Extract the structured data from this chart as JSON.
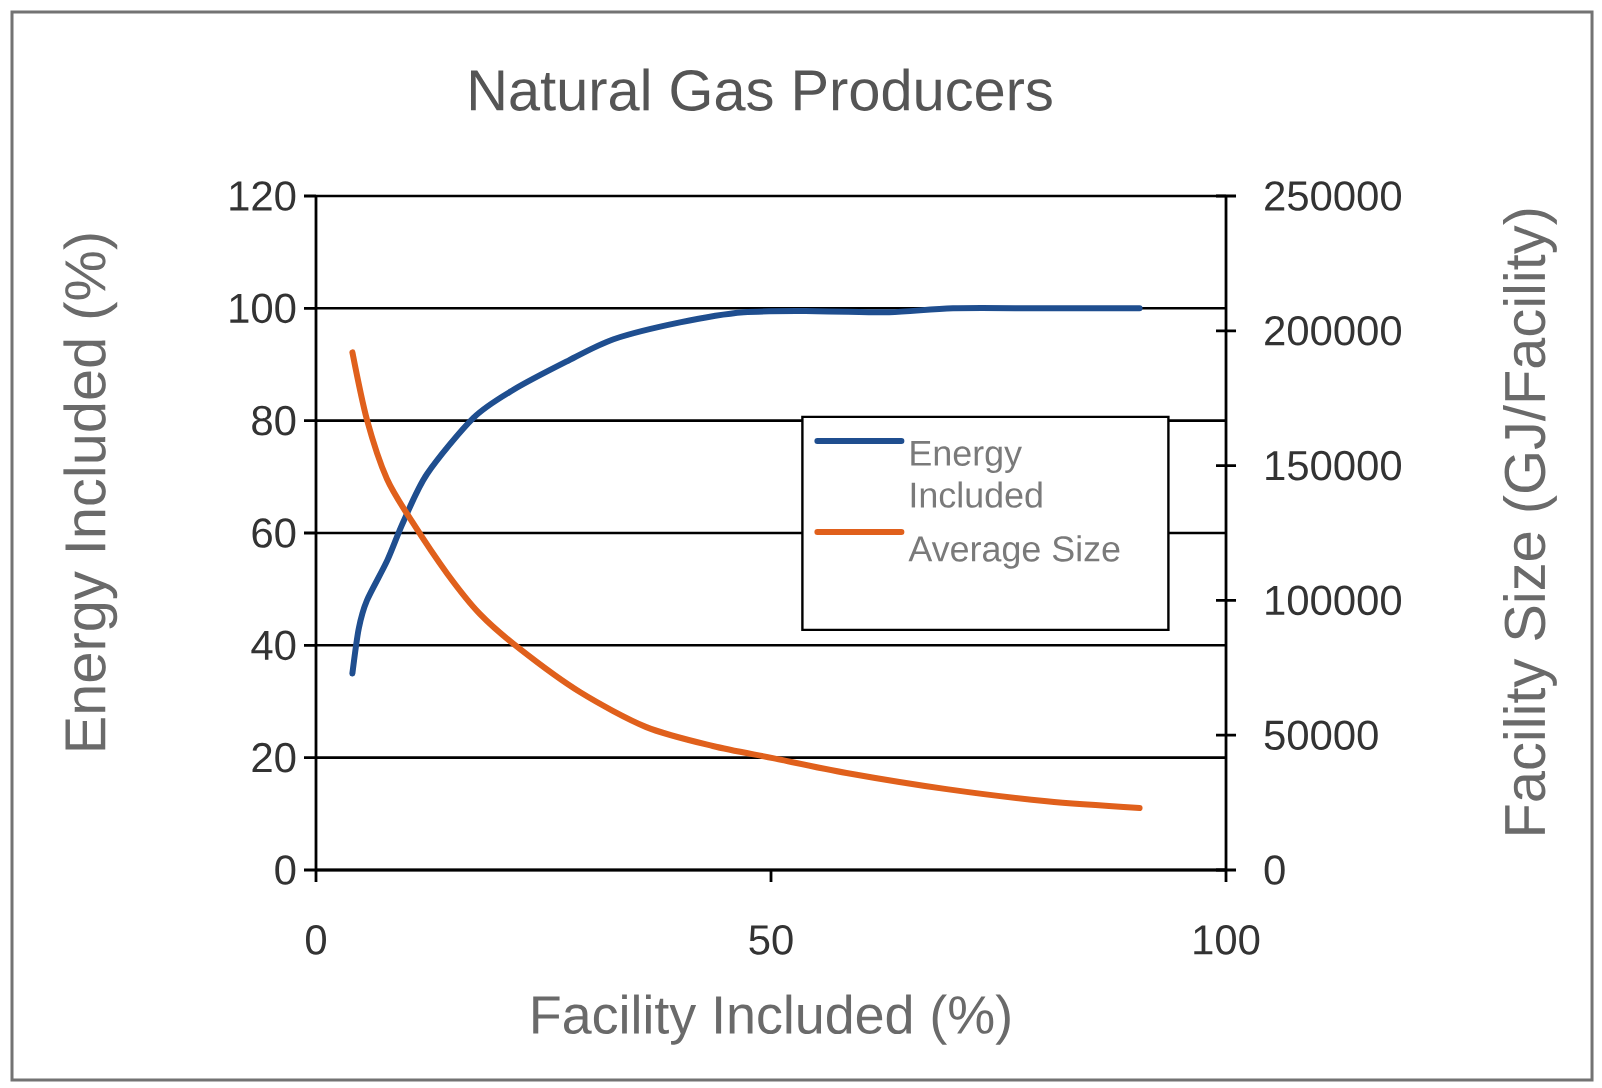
{
  "chart_data": {
    "type": "line",
    "title": "Natural Gas Producers",
    "xlabel": "Facility Included (%)",
    "ylabel": "Energy Included (%)",
    "y2label": "Facility Size (GJ/Facility)",
    "xlim": [
      0,
      100
    ],
    "xticks": [
      0,
      50,
      100
    ],
    "ylim": [
      0,
      120
    ],
    "yticks": [
      0,
      20,
      40,
      60,
      80,
      100,
      120
    ],
    "y2lim": [
      0,
      250000
    ],
    "y2ticks": [
      0,
      50000,
      100000,
      150000,
      200000,
      250000
    ],
    "grid": "y",
    "legend": "right",
    "series": [
      {
        "name": "Energy Included",
        "color": "#1f4e8f",
        "x": [
          4,
          4.7,
          5.6,
          7.8,
          9.6,
          12.2,
          17.3,
          21.7,
          27.5,
          32.7,
          40,
          47,
          55,
          63,
          70,
          80,
          90.5
        ],
        "values": [
          35,
          43,
          48,
          55,
          62,
          70.5,
          80.5,
          85.5,
          90.5,
          94.5,
          97.5,
          99.3,
          99.5,
          99.3,
          100,
          100,
          100
        ]
      },
      {
        "name": "Average Size",
        "color": "#e0601c",
        "axis": "y2",
        "x": [
          4,
          5.6,
          7.8,
          10.6,
          14.4,
          18,
          22.4,
          29,
          36.3,
          43.6,
          50.2,
          58.3,
          69.3,
          80.3,
          90.5
        ],
        "values": [
          192000,
          167000,
          145000,
          129000,
          110000,
          95000,
          82000,
          66000,
          53000,
          46000,
          41500,
          36000,
          30000,
          25500,
          23000
        ]
      }
    ]
  }
}
